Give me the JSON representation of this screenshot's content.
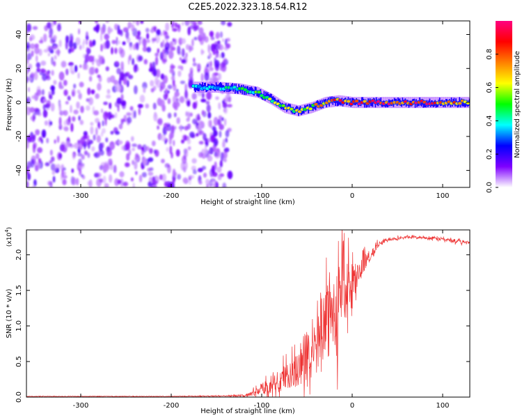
{
  "chart_data": [
    {
      "type": "heatmap",
      "title": "C2E5.2022.323.18.54.R12",
      "xlabel": "Height of straight line (km)",
      "ylabel": "Frequency (Hz)",
      "xlim": [
        -360,
        130
      ],
      "ylim": [
        -50,
        48
      ],
      "xticks": [
        -300,
        -200,
        -100,
        0,
        100
      ],
      "yticks": [
        -40,
        -20,
        0,
        20,
        40
      ],
      "colorbar": {
        "label": "Normalized spectral amplitude",
        "range": [
          0.0,
          1.0
        ],
        "ticks": [
          "0.0",
          "0.2",
          "0.4",
          "0.6",
          "0.8"
        ],
        "colors": [
          "#ffffff",
          "#7f00ff",
          "#0000ff",
          "#00ffff",
          "#00ff00",
          "#ffff00",
          "#ff8000",
          "#ff0000",
          "#ff0080"
        ]
      },
      "noise_region": {
        "x": [
          -360,
          -135
        ],
        "level": 0.15
      },
      "signal_track": [
        {
          "x": -175,
          "freq": 9,
          "amp": 0.35
        },
        {
          "x": -150,
          "freq": 9,
          "amp": 0.4
        },
        {
          "x": -125,
          "freq": 8,
          "amp": 0.45
        },
        {
          "x": -105,
          "freq": 6,
          "amp": 0.5
        },
        {
          "x": -90,
          "freq": 2,
          "amp": 0.55
        },
        {
          "x": -75,
          "freq": -3,
          "amp": 0.6
        },
        {
          "x": -60,
          "freq": -5,
          "amp": 0.6
        },
        {
          "x": -45,
          "freq": -3,
          "amp": 0.65
        },
        {
          "x": -30,
          "freq": 0,
          "amp": 0.75
        },
        {
          "x": -15,
          "freq": 1,
          "amp": 0.85
        },
        {
          "x": 0,
          "freq": 0,
          "amp": 0.9
        },
        {
          "x": 40,
          "freq": 0,
          "amp": 0.95
        },
        {
          "x": 90,
          "freq": 0,
          "amp": 0.85
        },
        {
          "x": 130,
          "freq": 0,
          "amp": 0.8
        }
      ]
    },
    {
      "type": "line",
      "xlabel": "Height of straight line (km)",
      "ylabel": "SNR (10 * v/v)",
      "yscale_label": "(x10",
      "yscale_exponent": "4",
      "yscale_suffix": ")",
      "xlim": [
        -360,
        130
      ],
      "ylim": [
        0,
        2.35
      ],
      "xticks": [
        -300,
        -200,
        -100,
        0,
        100
      ],
      "yticks": [
        "0.0",
        "0.5",
        "1.0",
        "1.5",
        "2.0"
      ],
      "color": "#ee3333",
      "series": [
        {
          "name": "SNR",
          "x": [
            -360,
            -300,
            -200,
            -120,
            -110,
            -100,
            -90,
            -80,
            -70,
            -60,
            -50,
            -40,
            -35,
            -30,
            -25,
            -20,
            -15,
            -10,
            -5,
            0,
            10,
            20,
            30,
            40,
            60,
            80,
            100,
            115,
            130
          ],
          "y": [
            0.01,
            0.01,
            0.01,
            0.02,
            0.05,
            0.12,
            0.15,
            0.22,
            0.3,
            0.38,
            0.45,
            0.6,
            0.85,
            1.0,
            1.1,
            1.2,
            1.3,
            1.4,
            1.5,
            1.6,
            1.8,
            2.0,
            2.15,
            2.22,
            2.25,
            2.24,
            2.22,
            2.19,
            2.17
          ],
          "spread": [
            0,
            0,
            0,
            0.02,
            0.08,
            0.15,
            0.2,
            0.3,
            0.4,
            0.45,
            0.55,
            0.7,
            1.0,
            1.3,
            1.0,
            1.1,
            1.2,
            1.0,
            0.8,
            0.5,
            0.3,
            0.15,
            0.08,
            0.05,
            0.03,
            0.03,
            0.05,
            0.06,
            0.03
          ]
        }
      ]
    }
  ]
}
